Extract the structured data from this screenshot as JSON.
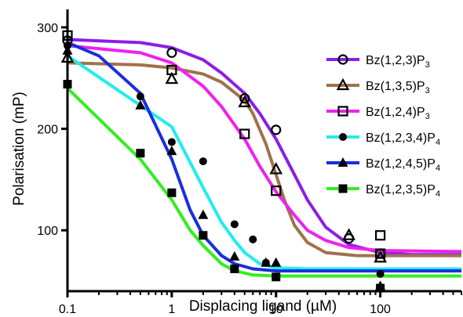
{
  "chart_data": {
    "type": "scatter",
    "title": "",
    "xlabel": "Displacing ligand (µM)",
    "ylabel": "Polarisation (mP)",
    "xscale": "log",
    "xlim": [
      0.1,
      600
    ],
    "ylim": [
      40,
      310
    ],
    "x_ticks": [
      0.1,
      1,
      10,
      100
    ],
    "x_tick_labels": [
      "0.1",
      "1",
      "10",
      "100"
    ],
    "y_ticks": [
      100,
      200,
      300
    ],
    "y_tick_labels": [
      "100",
      "200",
      "300"
    ],
    "grid": false,
    "legend_position": "right",
    "series": [
      {
        "name": "Bz(1,2,3)P3",
        "label_main": "Bz(1,2,3)P",
        "label_sub": "3",
        "color": "#8b1ee6",
        "marker": "open-circle",
        "points": [
          [
            0.1,
            287
          ],
          [
            1,
            275
          ],
          [
            5,
            230
          ],
          [
            10,
            199
          ],
          [
            50,
            92
          ],
          [
            100,
            77
          ]
        ],
        "curve": [
          [
            0.1,
            288
          ],
          [
            0.5,
            285
          ],
          [
            1,
            280
          ],
          [
            2,
            268
          ],
          [
            3,
            255
          ],
          [
            5,
            235
          ],
          [
            7,
            215
          ],
          [
            10,
            190
          ],
          [
            15,
            155
          ],
          [
            20,
            130
          ],
          [
            30,
            103
          ],
          [
            50,
            86
          ],
          [
            100,
            78
          ],
          [
            200,
            76
          ],
          [
            600,
            76
          ]
        ]
      },
      {
        "name": "Bz(1,3,5)P3",
        "label_main": "Bz(1,3,5)P",
        "label_sub": "3",
        "color": "#a0724a",
        "marker": "open-triangle",
        "points": [
          [
            0.1,
            270
          ],
          [
            1,
            249
          ],
          [
            5,
            226
          ],
          [
            10,
            160
          ],
          [
            50,
            95
          ],
          [
            100,
            73
          ]
        ],
        "curve": [
          [
            0.1,
            265
          ],
          [
            0.5,
            263
          ],
          [
            1,
            260
          ],
          [
            2,
            254
          ],
          [
            3,
            246
          ],
          [
            5,
            228
          ],
          [
            6,
            215
          ],
          [
            8,
            185
          ],
          [
            10,
            155
          ],
          [
            12,
            130
          ],
          [
            15,
            105
          ],
          [
            20,
            88
          ],
          [
            30,
            78
          ],
          [
            60,
            75
          ],
          [
            600,
            75
          ]
        ]
      },
      {
        "name": "Bz(1,2,4)P3",
        "label_main": "Bz(1,2,4)P",
        "label_sub": "3",
        "color": "#ee22ee",
        "marker": "open-square",
        "points": [
          [
            0.1,
            292
          ],
          [
            1,
            258
          ],
          [
            5,
            195
          ],
          [
            10,
            139
          ],
          [
            100,
            95
          ],
          [
            100,
            77
          ]
        ],
        "curve": [
          [
            0.1,
            282
          ],
          [
            0.5,
            275
          ],
          [
            1,
            265
          ],
          [
            2,
            242
          ],
          [
            3,
            222
          ],
          [
            5,
            190
          ],
          [
            7,
            163
          ],
          [
            10,
            138
          ],
          [
            15,
            115
          ],
          [
            20,
            100
          ],
          [
            30,
            90
          ],
          [
            50,
            83
          ],
          [
            100,
            80
          ],
          [
            600,
            79
          ]
        ]
      },
      {
        "name": "Bz(1,2,3,4)P4",
        "label_main": "Bz(1,2,3,4)P",
        "label_sub": "4",
        "color": "#22ecec",
        "marker": "filled-circle",
        "points": [
          [
            0.1,
            282
          ],
          [
            0.5,
            232
          ],
          [
            1,
            187
          ],
          [
            2,
            168
          ],
          [
            4,
            106
          ],
          [
            6,
            91
          ],
          [
            8,
            68
          ],
          [
            100,
            57
          ]
        ],
        "curve": [
          [
            0.1,
            272
          ],
          [
            1,
            202
          ],
          [
            2,
            142
          ],
          [
            3,
            108
          ],
          [
            4,
            90
          ],
          [
            5,
            78
          ],
          [
            7,
            67
          ],
          [
            10,
            63
          ],
          [
            20,
            62
          ],
          [
            600,
            62
          ]
        ]
      },
      {
        "name": "Bz(1,2,4,5)P4",
        "label_main": "Bz(1,2,4,5)P",
        "label_sub": "4",
        "color": "#1a2ee0",
        "marker": "filled-triangle",
        "points": [
          [
            0.1,
            277
          ],
          [
            0.5,
            223
          ],
          [
            1,
            178
          ],
          [
            2,
            115
          ],
          [
            4,
            74
          ],
          [
            8,
            68
          ],
          [
            10,
            68
          ],
          [
            100,
            45
          ]
        ],
        "curve": [
          [
            0.1,
            285
          ],
          [
            0.2,
            272
          ],
          [
            0.5,
            235
          ],
          [
            1,
            170
          ],
          [
            1.5,
            120
          ],
          [
            2,
            95
          ],
          [
            3,
            75
          ],
          [
            4,
            67
          ],
          [
            6,
            62
          ],
          [
            10,
            60
          ],
          [
            600,
            60
          ]
        ]
      },
      {
        "name": "Bz(1,2,3,5)P4",
        "label_main": "Bz(1,2,3,5)P",
        "label_sub": "4",
        "color": "#33ee22",
        "marker": "filled-square",
        "points": [
          [
            0.1,
            244
          ],
          [
            0.5,
            176
          ],
          [
            1,
            137
          ],
          [
            2,
            95
          ],
          [
            4,
            62
          ],
          [
            10,
            54
          ],
          [
            100,
            43
          ]
        ],
        "curve": [
          [
            0.1,
            240
          ],
          [
            0.5,
            170
          ],
          [
            1,
            130
          ],
          [
            1.5,
            100
          ],
          [
            2,
            85
          ],
          [
            3,
            67
          ],
          [
            4,
            60
          ],
          [
            6,
            56
          ],
          [
            10,
            55
          ],
          [
            600,
            55
          ]
        ]
      }
    ]
  }
}
